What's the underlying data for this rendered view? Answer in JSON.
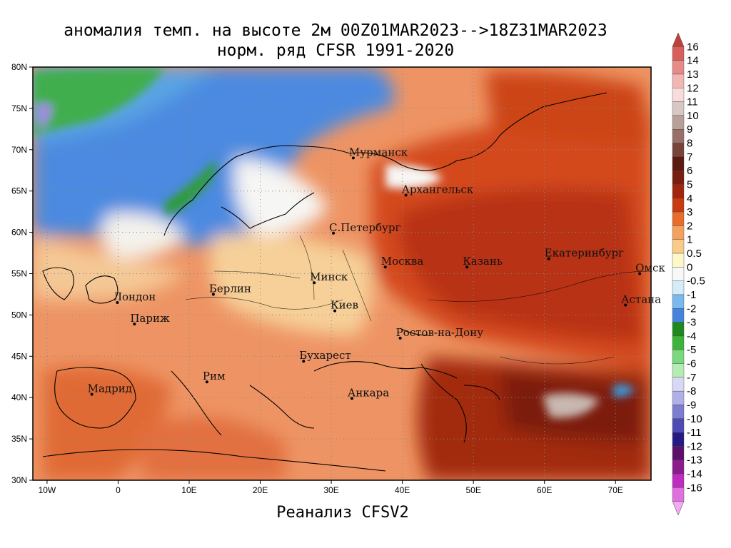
{
  "title": {
    "line1": "аномалия темп. на высоте 2м 00Z01MAR2023-->18Z31MAR2023",
    "line2": "норм. ряд CFSR 1991-2020"
  },
  "footer": "Реанализ CFSV2",
  "map": {
    "lon_range": [
      -12,
      75
    ],
    "lat_range": [
      30,
      80
    ],
    "lat_ticks": [
      "80N",
      "75N",
      "70N",
      "65N",
      "60N",
      "55N",
      "50N",
      "45N",
      "40N",
      "35N",
      "30N"
    ],
    "lon_ticks": [
      "10W",
      "0",
      "10E",
      "20E",
      "30E",
      "40E",
      "50E",
      "60E",
      "70E"
    ],
    "cities": [
      {
        "name": "Мурманск",
        "lon": 33.1,
        "lat": 69.0
      },
      {
        "name": "Архангельск",
        "lon": 40.5,
        "lat": 64.5
      },
      {
        "name": "С.Петербург",
        "lon": 30.3,
        "lat": 59.9
      },
      {
        "name": "Москва",
        "lon": 37.6,
        "lat": 55.8
      },
      {
        "name": "Казань",
        "lon": 49.1,
        "lat": 55.8
      },
      {
        "name": "Екатеринбург",
        "lon": 60.6,
        "lat": 56.8
      },
      {
        "name": "Минск",
        "lon": 27.6,
        "lat": 53.9
      },
      {
        "name": "Омск",
        "lon": 73.4,
        "lat": 55.0
      },
      {
        "name": "Лондон",
        "lon": -0.1,
        "lat": 51.5
      },
      {
        "name": "Берлин",
        "lon": 13.4,
        "lat": 52.5
      },
      {
        "name": "Киев",
        "lon": 30.5,
        "lat": 50.5
      },
      {
        "name": "Астана",
        "lon": 71.4,
        "lat": 51.2
      },
      {
        "name": "Париж",
        "lon": 2.3,
        "lat": 48.9
      },
      {
        "name": "Ростов-на-Дону",
        "lon": 39.7,
        "lat": 47.2
      },
      {
        "name": "Бухарест",
        "lon": 26.1,
        "lat": 44.4
      },
      {
        "name": "Рим",
        "lon": 12.5,
        "lat": 41.9
      },
      {
        "name": "Мадрид",
        "lon": -3.7,
        "lat": 40.4
      },
      {
        "name": "Анкара",
        "lon": 32.9,
        "lat": 39.9
      }
    ]
  },
  "colorbar": {
    "labels": [
      "16",
      "14",
      "13",
      "12",
      "11",
      "10",
      "9",
      "8",
      "7",
      "6",
      "5",
      "4",
      "3",
      "2",
      "1",
      "0.5",
      "0",
      "-0.5",
      "-1",
      "-2",
      "-3",
      "-4",
      "-5",
      "-6",
      "-7",
      "-8",
      "-9",
      "-10",
      "-11",
      "-12",
      "-13",
      "-14",
      "-16"
    ],
    "colors": [
      "#c0403c",
      "#d8605c",
      "#e88a88",
      "#f2b6b4",
      "#f8dcdc",
      "#d8c8c4",
      "#b8a098",
      "#987068",
      "#784438",
      "#5c1a10",
      "#7a1e10",
      "#a2260e",
      "#c83a10",
      "#e86c2c",
      "#f4a060",
      "#f8cc88",
      "#fef8c8",
      "#f8f8f8",
      "#d4ecf8",
      "#7ab8ee",
      "#4684dc",
      "#1e8a1e",
      "#3cb43c",
      "#7cd87c",
      "#b4ecb4",
      "#d8d8f4",
      "#b0b0e8",
      "#7c7cd0",
      "#4c4cb4",
      "#241c84",
      "#5c106c",
      "#8c1c8c",
      "#c02cc0",
      "#e070e0",
      "#f4a8f4"
    ]
  }
}
